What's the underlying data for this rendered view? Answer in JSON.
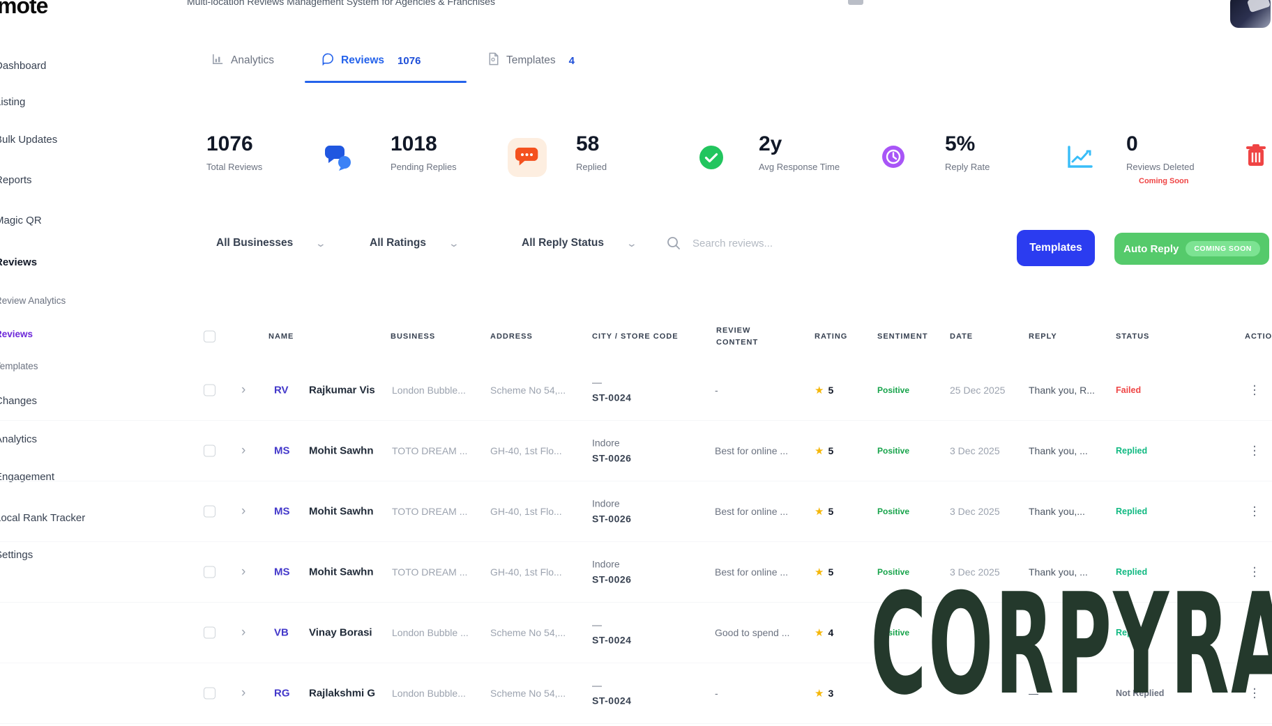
{
  "topbar": {
    "logo": "mote",
    "subtitle": "Multi-location Reviews Management System for Agencies & Franchises"
  },
  "sidebar": {
    "items": [
      {
        "label": "Dashboard",
        "style": "nav"
      },
      {
        "label": "Listing",
        "style": "nav"
      },
      {
        "label": "Bulk Updates",
        "style": "nav"
      },
      {
        "label": "Reports",
        "style": "nav"
      },
      {
        "label": "Magic QR",
        "style": "nav"
      },
      {
        "label": "Reviews",
        "style": "section"
      },
      {
        "label": "Review Analytics",
        "style": "sub"
      },
      {
        "label": "Reviews",
        "style": "sub-active"
      },
      {
        "label": "Templates",
        "style": "sub"
      },
      {
        "label": "Changes",
        "style": "nav"
      },
      {
        "label": "Analytics",
        "style": "nav"
      },
      {
        "label": "Engagement",
        "style": "nav"
      },
      {
        "label": "Local Rank Tracker",
        "style": "nav"
      },
      {
        "label": "Settings",
        "style": "nav"
      }
    ]
  },
  "tabs": [
    {
      "label": "Analytics",
      "count": "",
      "icon": "bar-chart-icon",
      "active": false
    },
    {
      "label": "Reviews",
      "count": "1076",
      "icon": "chat-bubble-icon",
      "active": true
    },
    {
      "label": "Templates",
      "count": "4",
      "icon": "document-icon",
      "active": false
    }
  ],
  "stats": [
    {
      "value": "1076",
      "label": "Total Reviews",
      "icon": "chat-bubbles-blue-icon",
      "extra": ""
    },
    {
      "value": "1018",
      "label": "Pending Replies",
      "icon": "chat-orange-icon",
      "extra": ""
    },
    {
      "value": "58",
      "label": "Replied",
      "icon": "check-green-icon",
      "extra": ""
    },
    {
      "value": "2y",
      "label": "Avg Response Time",
      "icon": "clock-purple-icon",
      "extra": ""
    },
    {
      "value": "5%",
      "label": "Reply Rate",
      "icon": "line-chart-blue-icon",
      "extra": ""
    },
    {
      "value": "0",
      "label": "Reviews Deleted",
      "icon": "trash-red-icon",
      "extra": "Coming Soon"
    }
  ],
  "filters": {
    "businesses": "All Businesses",
    "ratings": "All Ratings",
    "reply_status": "All Reply Status",
    "search_placeholder": "Search reviews...",
    "templates_button": "Templates",
    "auto_reply_button": "Auto Reply",
    "coming_soon_badge": "COMING SOON"
  },
  "table": {
    "columns": [
      "NAME",
      "BUSINESS",
      "ADDRESS",
      "CITY / STORE CODE",
      "REVIEW CONTENT",
      "RATING",
      "SENTIMENT",
      "DATE",
      "REPLY",
      "STATUS",
      "ACTION"
    ],
    "rows": [
      {
        "initials": "RV",
        "name": "Rajkumar Vis",
        "business": "London Bubble...",
        "address": "Scheme No 54,...",
        "city": "—",
        "store_code": "ST-0024",
        "review": "-",
        "rating": "5",
        "sentiment": "Positive",
        "date": "25 Dec 2025",
        "reply": "Thank you, R...",
        "status": "Failed"
      },
      {
        "initials": "MS",
        "name": "Mohit Sawhn",
        "business": "TOTO DREAM ...",
        "address": "GH-40, 1st Flo...",
        "city": "Indore",
        "store_code": "ST-0026",
        "review": "Best for online ...",
        "rating": "5",
        "sentiment": "Positive",
        "date": "3 Dec 2025",
        "reply": "Thank you, ...",
        "status": "Replied"
      },
      {
        "initials": "MS",
        "name": "Mohit Sawhn",
        "business": "TOTO DREAM ...",
        "address": "GH-40, 1st Flo...",
        "city": "Indore",
        "store_code": "ST-0026",
        "review": "Best for online ...",
        "rating": "5",
        "sentiment": "Positive",
        "date": "3 Dec 2025",
        "reply": "Thank you,...",
        "status": "Replied"
      },
      {
        "initials": "MS",
        "name": "Mohit Sawhn",
        "business": "TOTO DREAM ...",
        "address": "GH-40, 1st Flo...",
        "city": "Indore",
        "store_code": "ST-0026",
        "review": "Best for online ...",
        "rating": "5",
        "sentiment": "Positive",
        "date": "3 Dec 2025",
        "reply": "Thank you, ...",
        "status": "Replied"
      },
      {
        "initials": "VB",
        "name": "Vinay Borasi",
        "business": "London Bubble ...",
        "address": "Scheme No 54,...",
        "city": "—",
        "store_code": "ST-0024",
        "review": "Good to spend ...",
        "rating": "4",
        "sentiment": "Positive",
        "date": "",
        "reply": "—",
        "status": "Replied"
      },
      {
        "initials": "RG",
        "name": "Rajlakshmi G",
        "business": "London Bubble...",
        "address": "Scheme No 54,...",
        "city": "—",
        "store_code": "ST-0024",
        "review": "-",
        "rating": "3",
        "sentiment": "",
        "date": "",
        "reply": "—",
        "status": "Not Replied"
      }
    ]
  },
  "watermark": "CORPYRA",
  "colors": {
    "accent_blue": "#2563eb",
    "button_blue": "#2b3cf0",
    "button_green": "#55ca6b",
    "sidebar_active_purple": "#6d28d9",
    "positive_green": "#16a34a",
    "status": {
      "Failed": "#ef4444",
      "Replied": "#10b981",
      "Not Replied": "#6b7280"
    },
    "star_yellow": "#f5b70a",
    "coming_soon_red": "#ef4444"
  }
}
